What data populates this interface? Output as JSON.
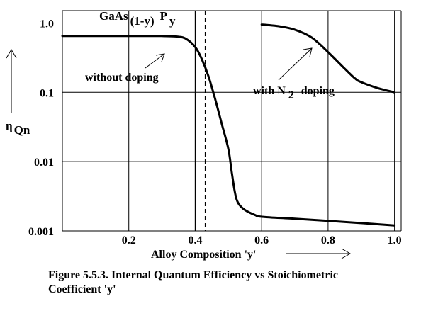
{
  "chart_data": {
    "type": "line",
    "title_parts": {
      "base": "GaAs",
      "sub": "(1-y)",
      "p": "P",
      "sub_y": "y"
    },
    "xlabel": "Alloy Composition 'y'",
    "ylabel_parts": {
      "eta": "η",
      "sub": "Qn"
    },
    "yscale": "log",
    "xlim": [
      0.0,
      1.02
    ],
    "ylim": [
      0.001,
      2.0
    ],
    "x_ticks": [
      0.2,
      0.4,
      0.6,
      0.8,
      1.0
    ],
    "x_tick_labels": [
      "0.2",
      "0.4",
      "0.6",
      "0.8",
      "1.0"
    ],
    "y_ticks": [
      1.0,
      0.1,
      0.01,
      0.001
    ],
    "y_tick_labels": [
      "1.0",
      "0.1",
      "0.01",
      "0.001"
    ],
    "grid": true,
    "vertical_lines": [
      {
        "x": 0.4,
        "style": "solid"
      },
      {
        "x": 0.43,
        "style": "dashed"
      }
    ],
    "series": [
      {
        "label_id": "without_doping",
        "x": [
          0.0,
          0.1,
          0.2,
          0.3,
          0.34,
          0.37,
          0.4,
          0.42,
          0.44,
          0.46,
          0.48,
          0.5,
          0.51,
          0.52,
          0.53,
          0.55,
          0.58,
          0.6,
          0.7,
          0.8,
          0.9,
          1.0
        ],
        "y": [
          0.65,
          0.65,
          0.65,
          0.65,
          0.64,
          0.6,
          0.45,
          0.3,
          0.17,
          0.08,
          0.035,
          0.015,
          0.007,
          0.0035,
          0.0025,
          0.002,
          0.0017,
          0.0016,
          0.0015,
          0.0014,
          0.0013,
          0.0012
        ]
      },
      {
        "label_id": "with_n2_doping",
        "x": [
          0.6,
          0.65,
          0.7,
          0.75,
          0.8,
          0.85,
          0.88,
          0.9,
          0.95,
          1.0
        ],
        "y": [
          0.95,
          0.9,
          0.8,
          0.62,
          0.38,
          0.22,
          0.16,
          0.14,
          0.115,
          0.1
        ]
      }
    ],
    "annotations": [
      {
        "id": "without_doping",
        "text": "without doping"
      },
      {
        "id": "with_n2_doping",
        "text_parts": {
          "pre": "with N",
          "sub": "2",
          "post": "doping"
        }
      }
    ]
  },
  "caption": {
    "line1": "Figure 5.5.3. Internal Quantum Efficiency vs Stoichiometric",
    "line2": "Coefficient 'y'"
  }
}
